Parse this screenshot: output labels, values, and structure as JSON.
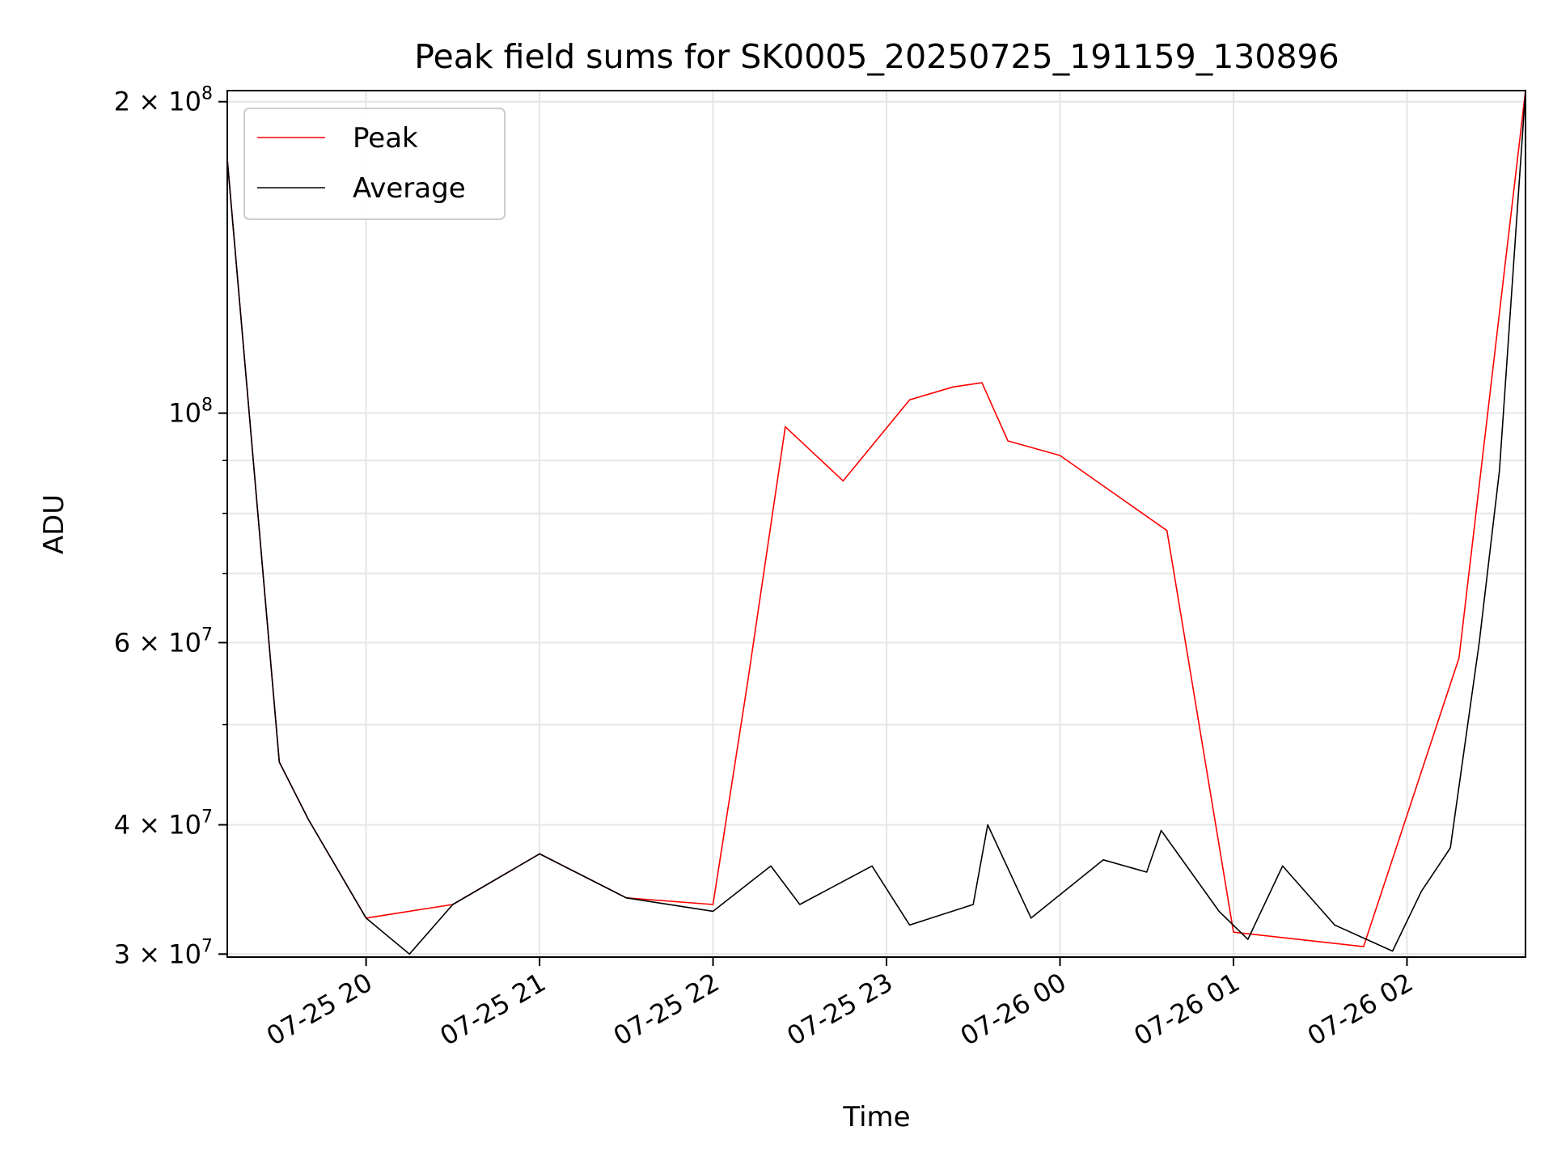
{
  "chart_data": {
    "type": "line",
    "title": "Peak field sums for SK0005_20250725_191159_130896",
    "xlabel": "Time",
    "ylabel": "ADU",
    "yscale": "log",
    "ylim": [
      29800000,
      205000000
    ],
    "xlim": [
      "2025-07-25 19:12",
      "2025-07-26 02:41"
    ],
    "x_ticks": [
      "07-25 20",
      "07-25 21",
      "07-25 22",
      "07-25 23",
      "07-26 00",
      "07-26 01",
      "07-26 02"
    ],
    "y_ticks": [
      {
        "value": 30000000,
        "base": "3 × 10",
        "exp": "7"
      },
      {
        "value": 40000000,
        "base": "4 × 10",
        "exp": "7"
      },
      {
        "value": 60000000,
        "base": "6 × 10",
        "exp": "7"
      },
      {
        "value": 100000000,
        "base": "10",
        "exp": "8"
      },
      {
        "value": 200000000,
        "base": "2 × 10",
        "exp": "8"
      }
    ],
    "grid": true,
    "legend_position": "upper-left",
    "series": [
      {
        "name": "Peak",
        "color": "#ff0000",
        "points": [
          [
            "2025-07-25 19:12",
            176000000
          ],
          [
            "2025-07-25 19:30",
            46000000
          ],
          [
            "2025-07-25 19:40",
            40500000
          ],
          [
            "2025-07-25 20:00",
            32500000
          ],
          [
            "2025-07-25 20:30",
            33500000
          ],
          [
            "2025-07-25 21:00",
            37500000
          ],
          [
            "2025-07-25 21:30",
            34000000
          ],
          [
            "2025-07-25 22:00",
            33500000
          ],
          [
            "2025-07-25 22:12",
            55000000
          ],
          [
            "2025-07-25 22:25",
            97000000
          ],
          [
            "2025-07-25 22:45",
            86000000
          ],
          [
            "2025-07-25 23:08",
            103000000
          ],
          [
            "2025-07-25 23:23",
            106000000
          ],
          [
            "2025-07-25 23:33",
            107000000
          ],
          [
            "2025-07-25 23:42",
            94000000
          ],
          [
            "2025-07-26 00:00",
            91000000
          ],
          [
            "2025-07-26 00:37",
            77000000
          ],
          [
            "2025-07-26 01:00",
            31500000
          ],
          [
            "2025-07-26 01:45",
            30500000
          ],
          [
            "2025-07-26 02:18",
            58000000
          ],
          [
            "2025-07-26 02:41",
            205000000
          ]
        ]
      },
      {
        "name": "Average",
        "color": "#000000",
        "points": [
          [
            "2025-07-25 19:12",
            176000000
          ],
          [
            "2025-07-25 19:30",
            46000000
          ],
          [
            "2025-07-25 19:40",
            40500000
          ],
          [
            "2025-07-25 20:00",
            32500000
          ],
          [
            "2025-07-25 20:15",
            30000000
          ],
          [
            "2025-07-25 20:30",
            33500000
          ],
          [
            "2025-07-25 21:00",
            37500000
          ],
          [
            "2025-07-25 21:30",
            34000000
          ],
          [
            "2025-07-25 22:00",
            33000000
          ],
          [
            "2025-07-25 22:20",
            36500000
          ],
          [
            "2025-07-25 22:30",
            33500000
          ],
          [
            "2025-07-25 22:55",
            36500000
          ],
          [
            "2025-07-25 23:08",
            32000000
          ],
          [
            "2025-07-25 23:30",
            33500000
          ],
          [
            "2025-07-25 23:35",
            40000000
          ],
          [
            "2025-07-25 23:50",
            32500000
          ],
          [
            "2025-07-26 00:15",
            37000000
          ],
          [
            "2025-07-26 00:30",
            36000000
          ],
          [
            "2025-07-26 00:35",
            39500000
          ],
          [
            "2025-07-26 00:55",
            33000000
          ],
          [
            "2025-07-26 01:05",
            31000000
          ],
          [
            "2025-07-26 01:17",
            36500000
          ],
          [
            "2025-07-26 01:35",
            32000000
          ],
          [
            "2025-07-26 01:55",
            30200000
          ],
          [
            "2025-07-26 02:05",
            34500000
          ],
          [
            "2025-07-26 02:15",
            38000000
          ],
          [
            "2025-07-26 02:25",
            60000000
          ],
          [
            "2025-07-26 02:32",
            88000000
          ],
          [
            "2025-07-26 02:41",
            205000000
          ]
        ]
      }
    ]
  }
}
